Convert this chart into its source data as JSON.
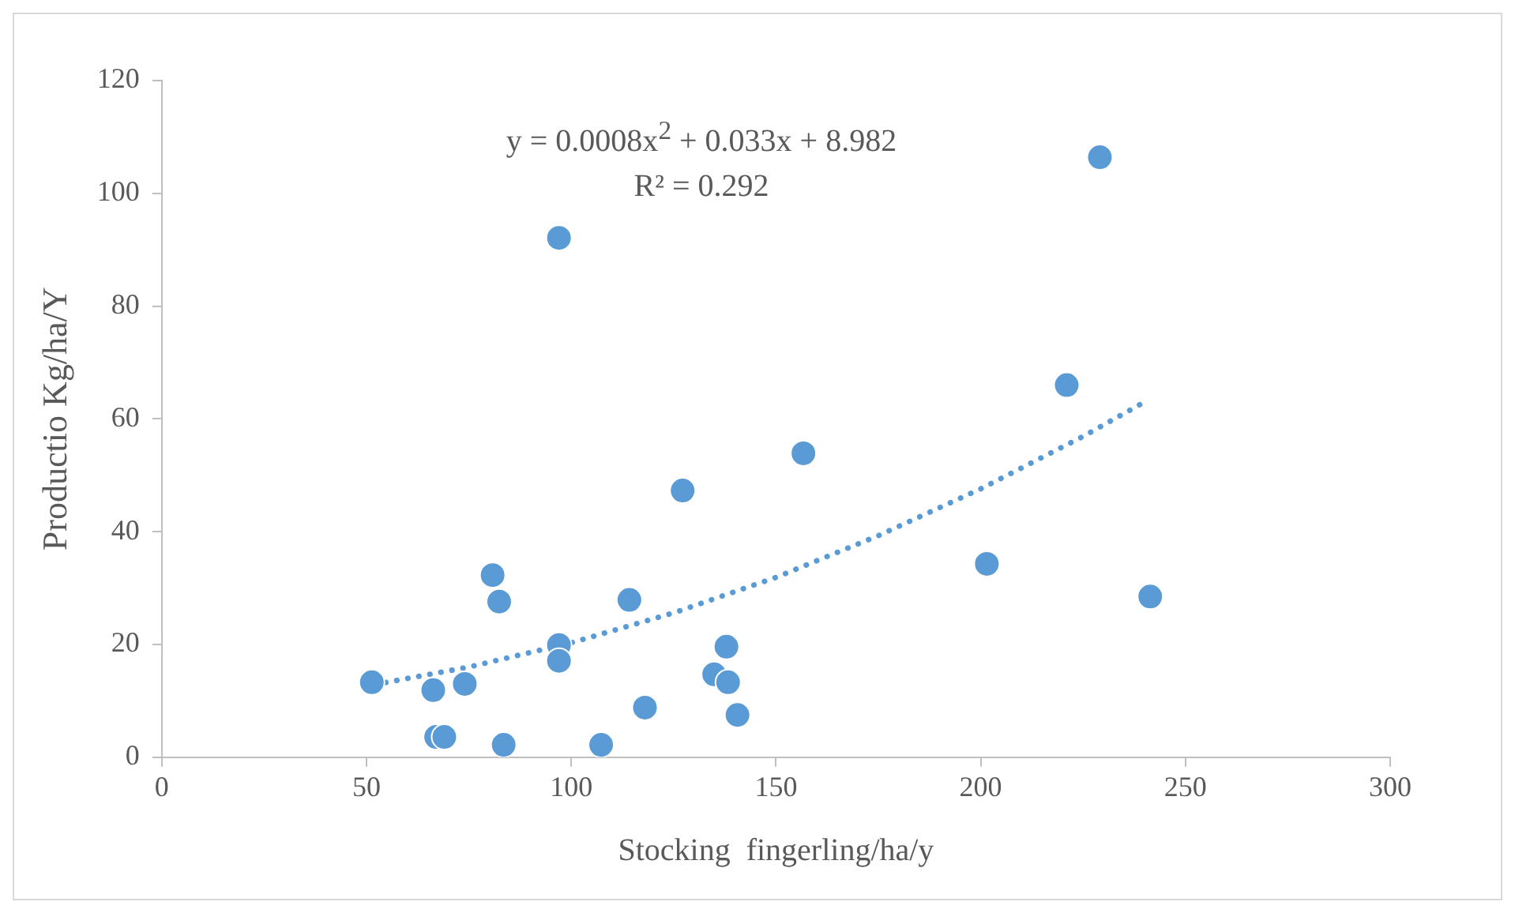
{
  "chart_data": {
    "type": "scatter",
    "xlabel": "Stocking  fingerling/ha/y",
    "ylabel": "Productio Kg/ha/Y",
    "xlim": [
      0,
      300
    ],
    "xticks": [
      0,
      50,
      100,
      150,
      200,
      250,
      300
    ],
    "ylim": [
      0,
      120
    ],
    "yticks": [
      0,
      20,
      40,
      60,
      80,
      100,
      120
    ],
    "grid": false,
    "marker": "circle",
    "annotations": [
      "y = 0.0008x$^{2}$ + 0.033x + 8.982",
      "R² = 0.292"
    ],
    "series": [
      {
        "color": "#5b9bd5",
        "x": [
          51.3,
          66.3,
          67,
          69,
          74,
          80.8,
          82.4,
          83.5,
          97,
          97,
          97,
          107.3,
          114.2,
          118,
          127.2,
          134.9,
          137.9,
          138.3,
          140.6,
          156.7,
          201.5,
          221,
          229.1,
          241.4
        ],
        "values": [
          13.3,
          11.9,
          3.6,
          3.6,
          13,
          32.3,
          27.6,
          2.2,
          19.9,
          17.1,
          92.1,
          2.2,
          27.9,
          8.8,
          47.3,
          14.7,
          19.6,
          13.3,
          7.5,
          53.9,
          34.3,
          66,
          106.4,
          28.5
        ]
      },
      {
        "type": "line",
        "color": "#5b9bd5",
        "line_style": "dotted",
        "marker": "none",
        "x": [
          52,
          75,
          100,
          125,
          150,
          175,
          200,
          225,
          241
        ],
        "values": [
          12.9,
          16.0,
          20.3,
          25.6,
          31.9,
          39.3,
          47.6,
          56.9,
          63.4
        ]
      }
    ]
  }
}
